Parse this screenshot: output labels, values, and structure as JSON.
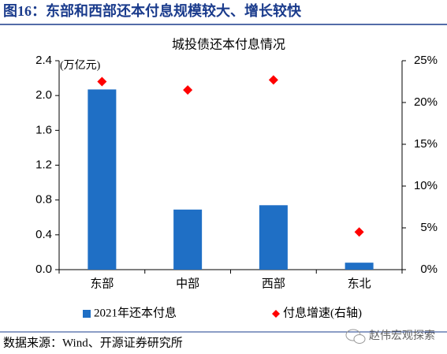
{
  "figure_title": "图16：东部和西部还本付息规模较大、增长较快",
  "chart_data": {
    "type": "bar",
    "title": "城投债还本付息情况",
    "annotation": "(万亿元)",
    "categories": [
      "东部",
      "中部",
      "西部",
      "东北"
    ],
    "series": [
      {
        "name": "2021年还本付息",
        "type": "bar",
        "color": "#1f6fc5",
        "values": [
          2.07,
          0.69,
          0.74,
          0.08
        ]
      },
      {
        "name": "付息增速(右轴)",
        "type": "scatter",
        "axis": "y2",
        "color": "#ff0000",
        "values": [
          22.5,
          21.5,
          22.7,
          4.5
        ]
      }
    ],
    "ylim": [
      0,
      2.4
    ],
    "yticks": [
      {
        "value": 0,
        "label": "0.0"
      },
      0.4,
      0.8,
      1.2,
      1.6,
      {
        "value": 2,
        "label": "2.0"
      },
      2.4
    ],
    "y2lim": [
      0,
      25
    ],
    "y2ticks": [
      {
        "value": 0,
        "label": "0%"
      },
      {
        "value": 5,
        "label": "5%"
      },
      {
        "value": 10,
        "label": "10%"
      },
      {
        "value": 15,
        "label": "15%"
      },
      {
        "value": 20,
        "label": "20%"
      },
      {
        "value": 25,
        "label": "25%"
      }
    ],
    "legend": "bottom"
  },
  "source": "数据来源：Wind、开源证券研究所",
  "watermark": "赵伟宏观探索"
}
